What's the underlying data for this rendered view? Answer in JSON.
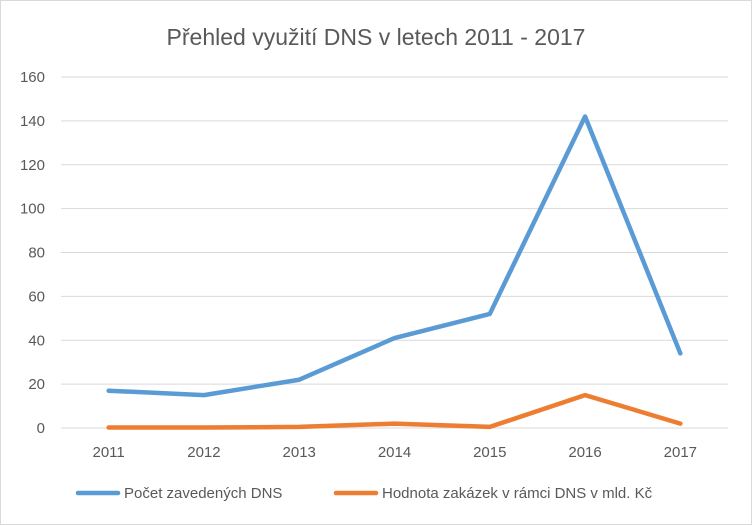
{
  "chart_data": {
    "type": "line",
    "title": "Přehled využití DNS v letech 2011 - 2017",
    "xlabel": "",
    "ylabel": "",
    "categories": [
      "2011",
      "2012",
      "2013",
      "2014",
      "2015",
      "2016",
      "2017"
    ],
    "ylim": [
      0,
      160
    ],
    "yticks": [
      0,
      20,
      40,
      60,
      80,
      100,
      120,
      140,
      160
    ],
    "grid": true,
    "legend_position": "bottom",
    "series": [
      {
        "name": "Počet zavedených DNS",
        "color": "#5b9bd5",
        "values": [
          17,
          15,
          22,
          41,
          52,
          142,
          34
        ]
      },
      {
        "name": "Hodnota zakázek v rámci DNS v mld. Kč",
        "color": "#ed7d31",
        "values": [
          0.2,
          0.2,
          0.5,
          2,
          0.5,
          15,
          2
        ]
      }
    ]
  }
}
